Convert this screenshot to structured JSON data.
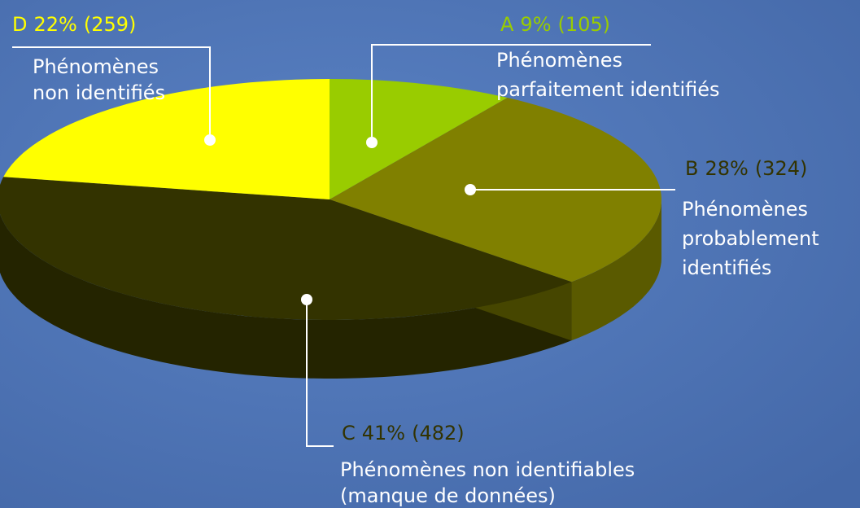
{
  "chart_data": {
    "type": "pie3d",
    "categories": [
      "A",
      "B",
      "C",
      "D"
    ],
    "values": [
      9,
      28,
      41,
      22
    ],
    "value_labels": [
      "9%",
      "28%",
      "41%",
      "22%"
    ],
    "counts": [
      105,
      324,
      482,
      259
    ],
    "count_labels": [
      "(105)",
      "(324)",
      "(482)",
      "(259)"
    ],
    "descriptions": [
      [
        "Phénomènes",
        "parfaitement identifiés"
      ],
      [
        "Phénomènes",
        "probablement",
        "identifiés"
      ],
      [
        "Phénomènes non identifiables",
        "(manque de données)"
      ],
      [
        "Phénomènes",
        "non identifiés"
      ]
    ],
    "colors": [
      "#99cc00",
      "#808000",
      "#333300",
      "#ffff00"
    ],
    "label_colors": [
      "#99cc00",
      "#333300",
      "#333300",
      "#ffff00"
    ],
    "start_angle": 0,
    "direction": "clockwise"
  }
}
